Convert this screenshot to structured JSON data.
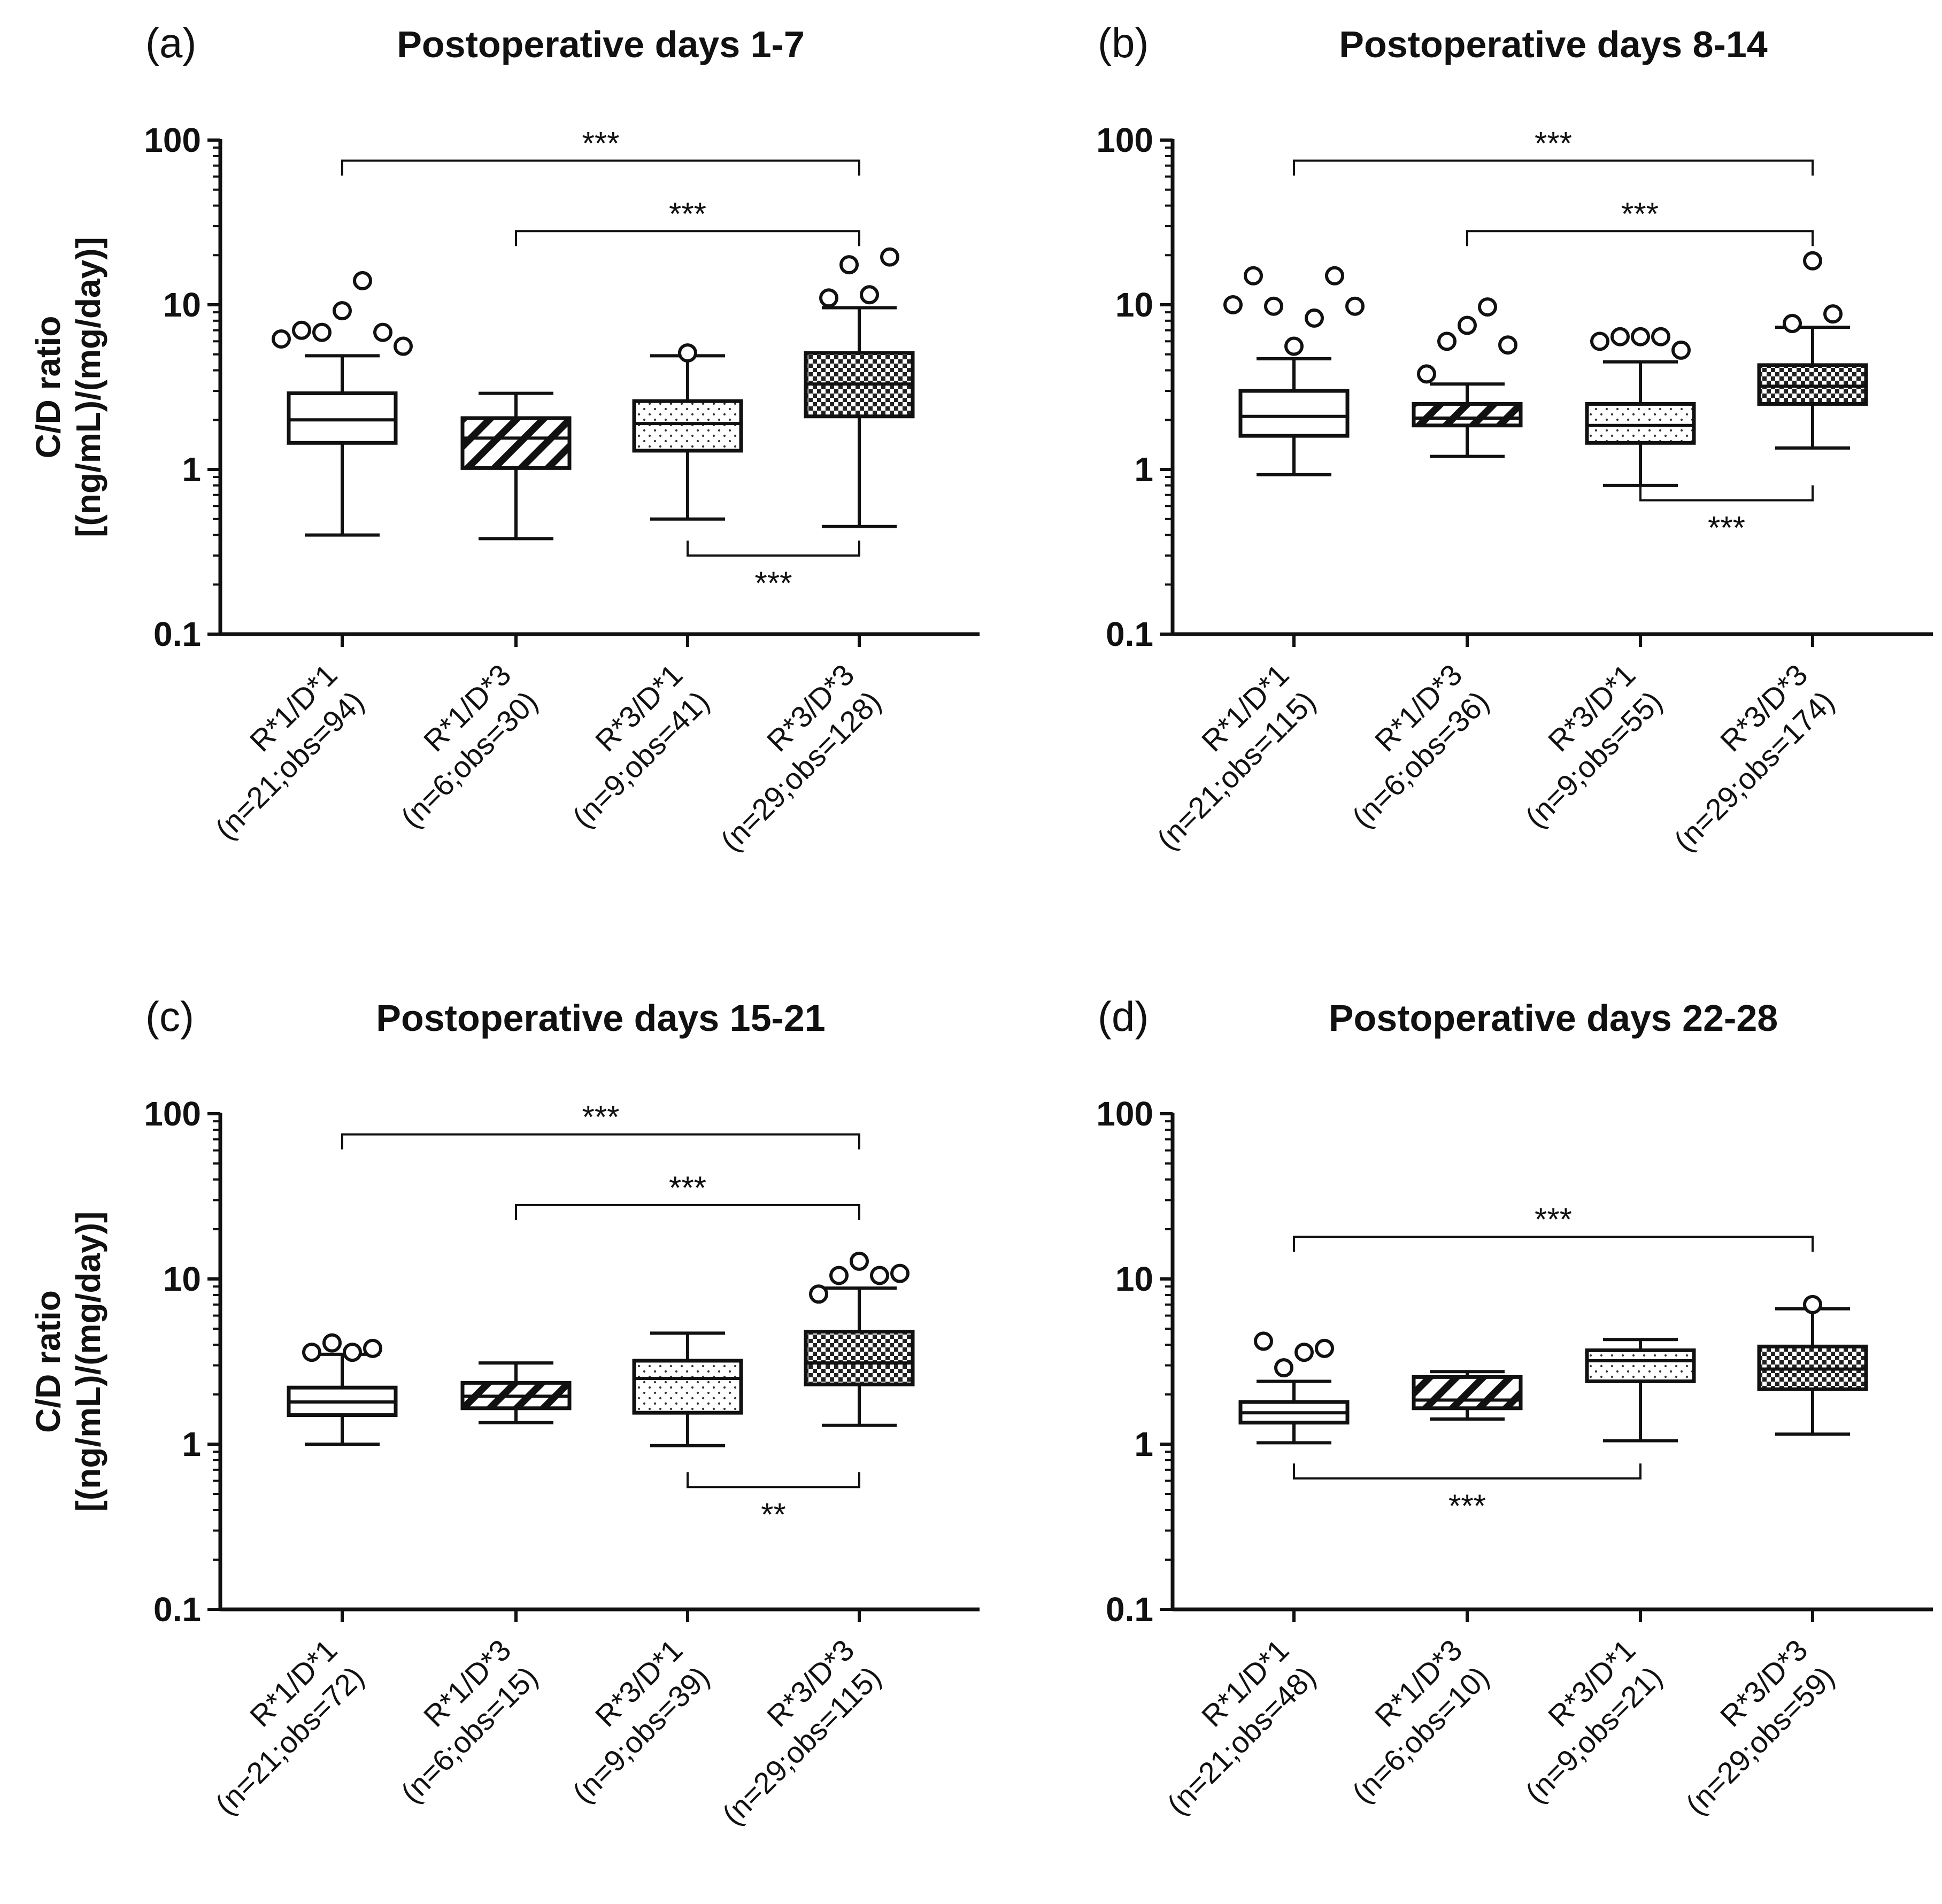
{
  "figure": {
    "style": {
      "ink": "#111111",
      "background": "#ffffff"
    }
  },
  "chart_data": [
    {
      "type": "boxplot",
      "panel_label": "(a)",
      "title": "Postoperative days 1-7",
      "ylabel": [
        "C/D ratio",
        "[(ng/mL)/(mg/day)]"
      ],
      "yscale": "log",
      "ylim": [
        0.1,
        100
      ],
      "yticks": [
        0.1,
        1,
        10,
        100
      ],
      "ytick_labels": [
        "0.1",
        "1",
        "10",
        "100"
      ],
      "show_ylabel": true,
      "categories": [
        {
          "line1": "R*1/D*1",
          "line2": "(n=21;obs=94)",
          "pattern": "none",
          "stats": {
            "min": 0.4,
            "q1": 1.45,
            "median": 2.0,
            "q3": 2.9,
            "max": 4.9
          },
          "outliers": [
            6.2,
            7.0,
            6.8,
            9.2,
            14.0,
            6.8,
            5.6
          ]
        },
        {
          "line1": "R*1/D*3",
          "line2": "(n=6;obs=30)",
          "pattern": "diag",
          "stats": {
            "min": 0.38,
            "q1": 1.02,
            "median": 1.55,
            "q3": 2.05,
            "max": 2.9
          },
          "outliers": []
        },
        {
          "line1": "R*3/D*1",
          "line2": "(n=9;obs=41)",
          "pattern": "dots",
          "stats": {
            "min": 0.5,
            "q1": 1.3,
            "median": 1.9,
            "q3": 2.6,
            "max": 4.9
          },
          "outliers": [
            5.1
          ]
        },
        {
          "line1": "R*3/D*3",
          "line2": "(n=29;obs=128)",
          "pattern": "check",
          "stats": {
            "min": 0.45,
            "q1": 2.1,
            "median": 3.3,
            "q3": 5.1,
            "max": 9.6
          },
          "outliers": [
            11.0,
            17.5,
            11.5,
            19.5
          ]
        }
      ],
      "brackets": [
        {
          "from": 0,
          "to": 3,
          "at": 75,
          "side": "top",
          "label": "***"
        },
        {
          "from": 1,
          "to": 3,
          "at": 28,
          "side": "top",
          "label": "***"
        },
        {
          "from": 2,
          "to": 3,
          "at": 0.3,
          "side": "bottom",
          "label": "***"
        }
      ]
    },
    {
      "type": "boxplot",
      "panel_label": "(b)",
      "title": "Postoperative days 8-14",
      "ylabel": [
        "C/D ratio",
        "[(ng/mL)/(mg/day)]"
      ],
      "yscale": "log",
      "ylim": [
        0.1,
        100
      ],
      "yticks": [
        0.1,
        1,
        10,
        100
      ],
      "ytick_labels": [
        "0.1",
        "1",
        "10",
        "100"
      ],
      "show_ylabel": false,
      "categories": [
        {
          "line1": "R*1/D*1",
          "line2": "(n=21;obs=115)",
          "pattern": "none",
          "stats": {
            "min": 0.93,
            "q1": 1.6,
            "median": 2.1,
            "q3": 3.0,
            "max": 4.7
          },
          "outliers": [
            10.0,
            15.0,
            9.8,
            5.6,
            8.3,
            15.0,
            9.8
          ]
        },
        {
          "line1": "R*1/D*3",
          "line2": "(n=6;obs=36)",
          "pattern": "diag",
          "stats": {
            "min": 1.2,
            "q1": 1.85,
            "median": 2.05,
            "q3": 2.5,
            "max": 3.3
          },
          "outliers": [
            3.8,
            6.0,
            7.5,
            9.7,
            5.7
          ]
        },
        {
          "line1": "R*3/D*1",
          "line2": "(n=9;obs=55)",
          "pattern": "dots",
          "stats": {
            "min": 0.8,
            "q1": 1.45,
            "median": 1.85,
            "q3": 2.5,
            "max": 4.5
          },
          "outliers": [
            6.0,
            6.4,
            6.4,
            6.4,
            5.3
          ]
        },
        {
          "line1": "R*3/D*3",
          "line2": "(n=29;obs=174)",
          "pattern": "check",
          "stats": {
            "min": 1.35,
            "q1": 2.5,
            "median": 3.2,
            "q3": 4.3,
            "max": 7.3
          },
          "outliers": [
            7.7,
            18.5,
            8.8
          ]
        }
      ],
      "brackets": [
        {
          "from": 0,
          "to": 3,
          "at": 75,
          "side": "top",
          "label": "***"
        },
        {
          "from": 1,
          "to": 3,
          "at": 28,
          "side": "top",
          "label": "***"
        },
        {
          "from": 2,
          "to": 3,
          "at": 0.65,
          "side": "bottom",
          "label": "***"
        }
      ]
    },
    {
      "type": "boxplot",
      "panel_label": "(c)",
      "title": "Postoperative days 15-21",
      "ylabel": [
        "C/D ratio",
        "[(ng/mL)/(mg/day)]"
      ],
      "yscale": "log",
      "ylim": [
        0.1,
        100
      ],
      "yticks": [
        0.1,
        1,
        10,
        100
      ],
      "ytick_labels": [
        "0.1",
        "1",
        "10",
        "100"
      ],
      "show_ylabel": true,
      "categories": [
        {
          "line1": "R*1/D*1",
          "line2": "(n=21;obs=72)",
          "pattern": "none",
          "stats": {
            "min": 1.0,
            "q1": 1.5,
            "median": 1.8,
            "q3": 2.2,
            "max": 3.5
          },
          "outliers": [
            3.6,
            4.1,
            3.6,
            3.8
          ]
        },
        {
          "line1": "R*1/D*3",
          "line2": "(n=6;obs=15)",
          "pattern": "diag",
          "stats": {
            "min": 1.35,
            "q1": 1.65,
            "median": 1.95,
            "q3": 2.35,
            "max": 3.1
          },
          "outliers": []
        },
        {
          "line1": "R*3/D*1",
          "line2": "(n=9;obs=39)",
          "pattern": "dots",
          "stats": {
            "min": 0.98,
            "q1": 1.55,
            "median": 2.5,
            "q3": 3.2,
            "max": 4.7
          },
          "outliers": []
        },
        {
          "line1": "R*3/D*3",
          "line2": "(n=29;obs=115)",
          "pattern": "check",
          "stats": {
            "min": 1.3,
            "q1": 2.3,
            "median": 3.1,
            "q3": 4.8,
            "max": 8.8
          },
          "outliers": [
            8.1,
            10.5,
            12.8,
            10.5,
            10.8
          ]
        }
      ],
      "brackets": [
        {
          "from": 0,
          "to": 3,
          "at": 75,
          "side": "top",
          "label": "***"
        },
        {
          "from": 1,
          "to": 3,
          "at": 28,
          "side": "top",
          "label": "***"
        },
        {
          "from": 2,
          "to": 3,
          "at": 0.55,
          "side": "bottom",
          "label": "**"
        }
      ]
    },
    {
      "type": "boxplot",
      "panel_label": "(d)",
      "title": "Postoperative days 22-28",
      "ylabel": [
        "C/D ratio",
        "[(ng/mL)/(mg/day)]"
      ],
      "yscale": "log",
      "ylim": [
        0.1,
        100
      ],
      "yticks": [
        0.1,
        1,
        10,
        100
      ],
      "ytick_labels": [
        "0.1",
        "1",
        "10",
        "100"
      ],
      "show_ylabel": false,
      "categories": [
        {
          "line1": "R*1/D*1",
          "line2": "(n=21;obs=48)",
          "pattern": "none",
          "stats": {
            "min": 1.02,
            "q1": 1.35,
            "median": 1.55,
            "q3": 1.8,
            "max": 2.4
          },
          "outliers": [
            4.2,
            2.9,
            3.6,
            3.8
          ]
        },
        {
          "line1": "R*1/D*3",
          "line2": "(n=6;obs=10)",
          "pattern": "diag",
          "stats": {
            "min": 1.42,
            "q1": 1.65,
            "median": 1.85,
            "q3": 2.55,
            "max": 2.75
          },
          "outliers": []
        },
        {
          "line1": "R*3/D*1",
          "line2": "(n=9;obs=21)",
          "pattern": "dots",
          "stats": {
            "min": 1.05,
            "q1": 2.4,
            "median": 3.2,
            "q3": 3.7,
            "max": 4.3
          },
          "outliers": []
        },
        {
          "line1": "R*3/D*3",
          "line2": "(n=29;obs=59)",
          "pattern": "check",
          "stats": {
            "min": 1.15,
            "q1": 2.15,
            "median": 2.85,
            "q3": 3.9,
            "max": 6.6
          },
          "outliers": [
            7.0
          ]
        }
      ],
      "brackets": [
        {
          "from": 0,
          "to": 3,
          "at": 18,
          "side": "top",
          "label": "***"
        },
        {
          "from": 0,
          "to": 2,
          "at": 0.62,
          "side": "bottom",
          "label": "***"
        }
      ]
    }
  ]
}
